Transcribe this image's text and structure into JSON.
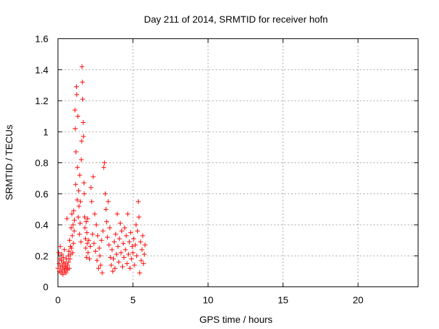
{
  "chart_data": {
    "type": "scatter",
    "title": "Day 211 of 2014, SRMTID for receiver hofn",
    "xlabel": "GPS time / hours",
    "ylabel": "SRMTID / TECUs",
    "xlim": [
      0,
      24
    ],
    "ylim": [
      0,
      1.6
    ],
    "xticks": [
      0,
      5,
      10,
      15,
      20
    ],
    "yticks": [
      0,
      0.2,
      0.4,
      0.6,
      0.8,
      1,
      1.2,
      1.4,
      1.6
    ],
    "xtick_labels": [
      "0",
      "5",
      "10",
      "15",
      "20"
    ],
    "ytick_labels": [
      "0",
      "0.2",
      "0.4",
      "0.6",
      "0.8",
      "1",
      "1.2",
      "1.4",
      "1.6"
    ],
    "grid": true,
    "marker": "+",
    "color": "#ff0000",
    "series": [
      {
        "points": [
          [
            0.0,
            0.12
          ],
          [
            0.05,
            0.22
          ],
          [
            0.08,
            0.15
          ],
          [
            0.1,
            0.1
          ],
          [
            0.12,
            0.18
          ],
          [
            0.15,
            0.26
          ],
          [
            0.18,
            0.13
          ],
          [
            0.2,
            0.09
          ],
          [
            0.23,
            0.17
          ],
          [
            0.25,
            0.21
          ],
          [
            0.28,
            0.11
          ],
          [
            0.3,
            0.14
          ],
          [
            0.33,
            0.08
          ],
          [
            0.35,
            0.19
          ],
          [
            0.38,
            0.16
          ],
          [
            0.4,
            0.12
          ],
          [
            0.43,
            0.24
          ],
          [
            0.45,
            0.1
          ],
          [
            0.48,
            0.15
          ],
          [
            0.5,
            0.13
          ],
          [
            0.53,
            0.09
          ],
          [
            0.55,
            0.18
          ],
          [
            0.58,
            0.12
          ],
          [
            0.6,
            0.44
          ],
          [
            0.63,
            0.14
          ],
          [
            0.65,
            0.11
          ],
          [
            0.68,
            0.2
          ],
          [
            0.7,
            0.16
          ],
          [
            0.73,
            0.23
          ],
          [
            0.75,
            0.12
          ],
          [
            0.78,
            0.3
          ],
          [
            0.8,
            0.18
          ],
          [
            0.83,
            0.26
          ],
          [
            0.85,
            0.21
          ],
          [
            0.88,
            0.38
          ],
          [
            0.9,
            0.25
          ],
          [
            0.93,
            0.47
          ],
          [
            0.95,
            0.33
          ],
          [
            0.98,
            0.22
          ],
          [
            1.0,
            0.4
          ],
          [
            1.03,
            0.28
          ],
          [
            1.05,
            0.49
          ],
          [
            1.08,
            0.36
          ],
          [
            1.1,
            0.43
          ],
          [
            1.13,
            1.14
          ],
          [
            1.15,
            1.02
          ],
          [
            1.18,
            0.66
          ],
          [
            1.2,
            0.87
          ],
          [
            1.23,
            1.29
          ],
          [
            1.25,
            1.24
          ],
          [
            1.28,
            0.56
          ],
          [
            1.3,
            0.77
          ],
          [
            1.33,
            1.1
          ],
          [
            1.35,
            0.45
          ],
          [
            1.38,
            0.62
          ],
          [
            1.4,
            0.52
          ],
          [
            1.43,
            0.34
          ],
          [
            1.45,
            0.72
          ],
          [
            1.48,
            0.41
          ],
          [
            1.5,
            0.55
          ],
          [
            1.53,
            0.29
          ],
          [
            1.55,
            0.82
          ],
          [
            1.58,
            0.94
          ],
          [
            1.6,
            1.42
          ],
          [
            1.63,
            1.32
          ],
          [
            1.65,
            1.21
          ],
          [
            1.68,
            1.06
          ],
          [
            1.7,
            0.97
          ],
          [
            1.73,
            0.67
          ],
          [
            1.75,
            0.6
          ],
          [
            1.78,
            0.45
          ],
          [
            1.8,
            0.38
          ],
          [
            1.83,
            0.31
          ],
          [
            1.85,
            0.25
          ],
          [
            1.88,
            0.42
          ],
          [
            1.9,
            0.19
          ],
          [
            1.93,
            0.35
          ],
          [
            1.95,
            0.28
          ],
          [
            1.98,
            0.44
          ],
          [
            2.0,
            0.22
          ],
          [
            2.05,
            0.3
          ],
          [
            2.1,
            0.18
          ],
          [
            2.15,
            0.26
          ],
          [
            2.2,
            0.64
          ],
          [
            2.25,
            0.55
          ],
          [
            2.3,
            0.34
          ],
          [
            2.35,
            0.71
          ],
          [
            2.4,
            0.28
          ],
          [
            2.45,
            0.47
          ],
          [
            2.5,
            0.23
          ],
          [
            2.55,
            0.4
          ],
          [
            2.6,
            0.17
          ],
          [
            2.65,
            0.33
          ],
          [
            2.7,
            0.12
          ],
          [
            2.75,
            0.25
          ],
          [
            2.8,
            0.2
          ],
          [
            2.85,
            0.14
          ],
          [
            2.9,
            0.3
          ],
          [
            2.95,
            0.09
          ],
          [
            3.0,
            0.36
          ],
          [
            3.05,
            0.77
          ],
          [
            3.1,
            0.8
          ],
          [
            3.15,
            0.6
          ],
          [
            3.2,
            0.5
          ],
          [
            3.25,
            0.42
          ],
          [
            3.3,
            0.32
          ],
          [
            3.35,
            0.55
          ],
          [
            3.4,
            0.27
          ],
          [
            3.45,
            0.38
          ],
          [
            3.5,
            0.19
          ],
          [
            3.55,
            0.14
          ],
          [
            3.6,
            0.24
          ],
          [
            3.65,
            0.1
          ],
          [
            3.7,
            0.18
          ],
          [
            3.75,
            0.29
          ],
          [
            3.8,
            0.12
          ],
          [
            3.85,
            0.34
          ],
          [
            3.9,
            0.21
          ],
          [
            3.95,
            0.47
          ],
          [
            4.0,
            0.26
          ],
          [
            4.05,
            0.16
          ],
          [
            4.1,
            0.31
          ],
          [
            4.15,
            0.41
          ],
          [
            4.2,
            0.22
          ],
          [
            4.25,
            0.36
          ],
          [
            4.3,
            0.13
          ],
          [
            4.35,
            0.28
          ],
          [
            4.4,
            0.19
          ],
          [
            4.45,
            0.38
          ],
          [
            4.5,
            0.24
          ],
          [
            4.55,
            0.33
          ],
          [
            4.6,
            0.15
          ],
          [
            4.65,
            0.47
          ],
          [
            4.7,
            0.21
          ],
          [
            4.75,
            0.29
          ],
          [
            4.8,
            0.12
          ],
          [
            4.85,
            0.35
          ],
          [
            4.9,
            0.18
          ],
          [
            4.95,
            0.26
          ],
          [
            5.0,
            0.22
          ],
          [
            5.05,
            0.31
          ],
          [
            5.1,
            0.14
          ],
          [
            5.15,
            0.27
          ],
          [
            5.2,
            0.4
          ],
          [
            5.25,
            0.2
          ],
          [
            5.3,
            0.36
          ],
          [
            5.35,
            0.55
          ],
          [
            5.4,
            0.45
          ],
          [
            5.45,
            0.09
          ],
          [
            5.5,
            0.29
          ],
          [
            5.55,
            0.17
          ],
          [
            5.6,
            0.24
          ],
          [
            5.65,
            0.33
          ],
          [
            5.7,
            0.15
          ],
          [
            5.75,
            0.21
          ],
          [
            5.8,
            0.27
          ]
        ]
      }
    ]
  }
}
